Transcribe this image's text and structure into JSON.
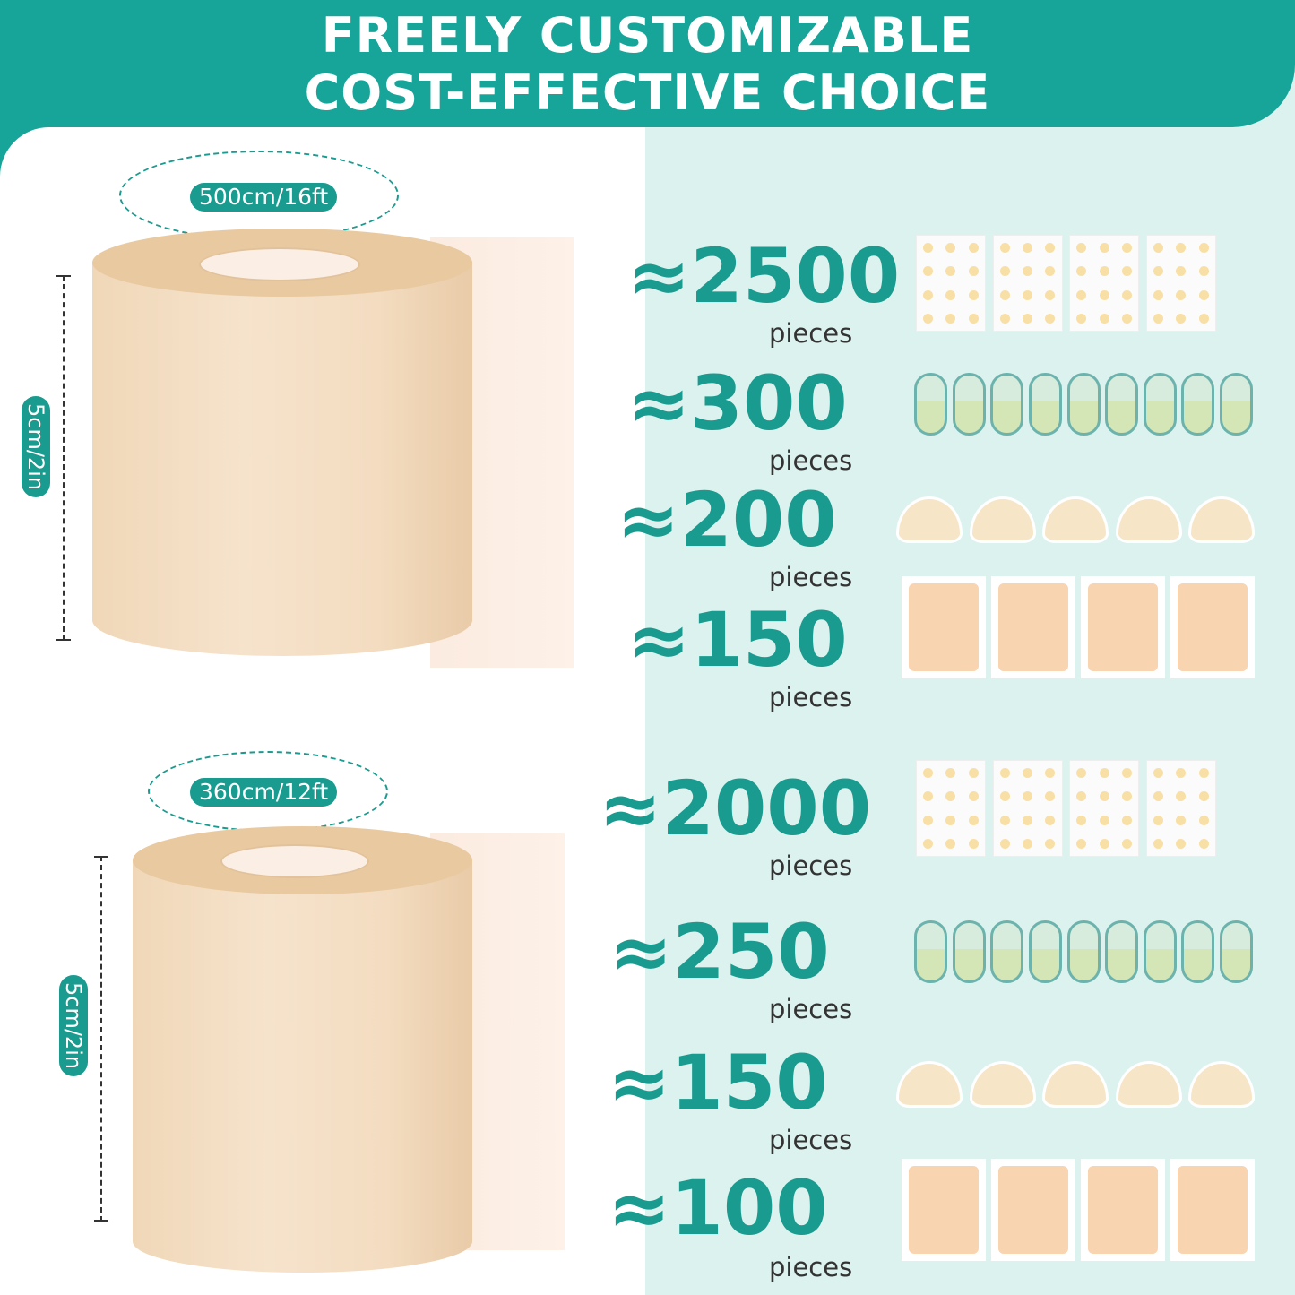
{
  "header": {
    "line1": "FREELY CUSTOMIZABLE",
    "line2": "COST-EFFECTIVE CHOICE"
  },
  "colors": {
    "accent": "#17a59a",
    "text_accent": "#1a9b8f",
    "panel": "#dcf2ef",
    "tape": "#f3dcc0"
  },
  "rolls": [
    {
      "length": "500cm/16ft",
      "width": "5cm/2in"
    },
    {
      "length": "360cm/12ft",
      "width": "5cm/2in"
    }
  ],
  "counts": [
    {
      "value": "≈2500",
      "unit": "pieces",
      "icon": "dot-sticker-sheet-icon"
    },
    {
      "value": "≈300",
      "unit": "pieces",
      "icon": "capsule-patch-icon"
    },
    {
      "value": "≈200",
      "unit": "pieces",
      "icon": "crescent-patch-icon"
    },
    {
      "value": "≈150",
      "unit": "pieces",
      "icon": "rectangle-patch-icon"
    },
    {
      "value": "≈2000",
      "unit": "pieces",
      "icon": "dot-sticker-sheet-icon"
    },
    {
      "value": "≈250",
      "unit": "pieces",
      "icon": "capsule-patch-icon"
    },
    {
      "value": "≈150",
      "unit": "pieces",
      "icon": "crescent-patch-icon"
    },
    {
      "value": "≈100",
      "unit": "pieces",
      "icon": "rectangle-patch-icon"
    }
  ]
}
